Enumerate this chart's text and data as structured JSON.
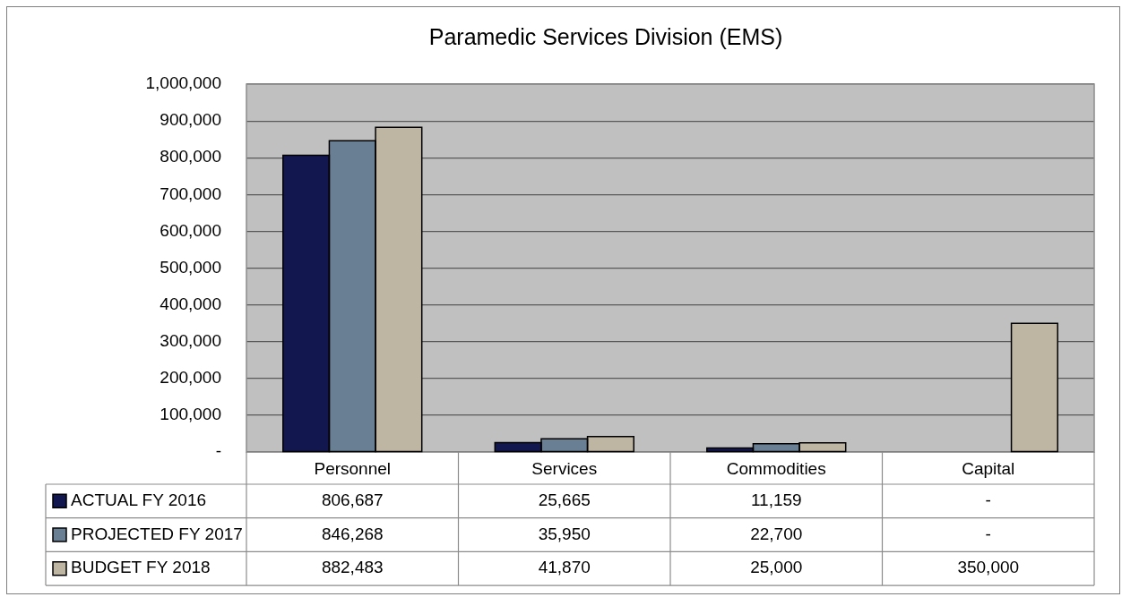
{
  "chart_data": {
    "type": "bar",
    "title": "Paramedic Services Division (EMS)",
    "categories": [
      "Personnel",
      "Services",
      "Commodities",
      "Capital"
    ],
    "series": [
      {
        "name": "ACTUAL FY 2016",
        "color": "#13174f",
        "values": [
          806687,
          25665,
          11159,
          0
        ],
        "value_labels": [
          "806,687",
          "25,665",
          "11,159",
          "-"
        ]
      },
      {
        "name": "PROJECTED FY 2017",
        "color": "#687f94",
        "values": [
          846268,
          35950,
          22700,
          0
        ],
        "value_labels": [
          "846,268",
          "35,950",
          "22,700",
          "-"
        ]
      },
      {
        "name": "BUDGET FY 2018",
        "color": "#beb5a3",
        "values": [
          882483,
          41870,
          25000,
          350000
        ],
        "value_labels": [
          "882,483",
          "41,870",
          "25,000",
          "350,000"
        ]
      }
    ],
    "ylim": [
      0,
      1000000
    ],
    "yticks": [
      {
        "value": 0,
        "label": "-"
      },
      {
        "value": 100000,
        "label": "100,000"
      },
      {
        "value": 200000,
        "label": "200,000"
      },
      {
        "value": 300000,
        "label": "300,000"
      },
      {
        "value": 400000,
        "label": "400,000"
      },
      {
        "value": 500000,
        "label": "500,000"
      },
      {
        "value": 600000,
        "label": "600,000"
      },
      {
        "value": 700000,
        "label": "700,000"
      },
      {
        "value": 800000,
        "label": "800,000"
      },
      {
        "value": 900000,
        "label": "900,000"
      },
      {
        "value": 1000000,
        "label": "1,000,000"
      }
    ],
    "grid": "y",
    "legend": "bottom"
  }
}
